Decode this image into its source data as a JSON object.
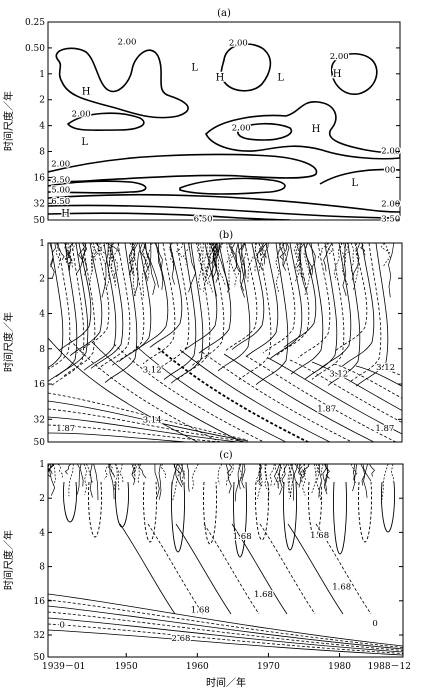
{
  "chart_data": [
    {
      "type": "contour",
      "panel_label": "(a)",
      "ylabel": "时间尺度／年",
      "y_scale": "log2",
      "y_ticks": [
        "0.25",
        "0.50",
        "1",
        "2",
        "4",
        "8",
        "16",
        "32",
        "50"
      ],
      "y_values": [
        0.25,
        0.5,
        1,
        2,
        4,
        8,
        16,
        32,
        50
      ],
      "x_range": [
        1939.0,
        1988.92
      ],
      "contour_labels": [
        {
          "text": "2.00",
          "x": 1950.2,
          "y": 0.42
        },
        {
          "text": "2.00",
          "x": 1966.0,
          "y": 0.43
        },
        {
          "text": "2.00",
          "x": 1980.3,
          "y": 0.62
        },
        {
          "text": "L",
          "x": 1959.8,
          "y": 0.85
        },
        {
          "text": "H",
          "x": 1963.4,
          "y": 1.1
        },
        {
          "text": "L",
          "x": 1972.0,
          "y": 1.1
        },
        {
          "text": "H",
          "x": 1980.0,
          "y": 1.0
        },
        {
          "text": "H",
          "x": 1944.4,
          "y": 1.6
        },
        {
          "text": "2.00",
          "x": 1943.7,
          "y": 2.9
        },
        {
          "text": "L",
          "x": 1944.2,
          "y": 6.2
        },
        {
          "text": "2.00",
          "x": 1966.4,
          "y": 4.2
        },
        {
          "text": "H",
          "x": 1977.0,
          "y": 4.4
        },
        {
          "text": "2.00",
          "x": 1987.6,
          "y": 7.8
        },
        {
          "text": "2.00",
          "x": 1940.8,
          "y": 11.0
        },
        {
          "text": "00",
          "x": 1987.5,
          "y": 13.0
        },
        {
          "text": "3.50",
          "x": 1940.8,
          "y": 17.0
        },
        {
          "text": "L",
          "x": 1982.5,
          "y": 18.5
        },
        {
          "text": "5.00",
          "x": 1940.8,
          "y": 22.0
        },
        {
          "text": "6.50",
          "x": 1940.8,
          "y": 30.0
        },
        {
          "text": "H",
          "x": 1941.5,
          "y": 42.0
        },
        {
          "text": "2.00",
          "x": 1987.6,
          "y": 32.0
        },
        {
          "text": "6.50",
          "x": 1961.0,
          "y": 48.0
        },
        {
          "text": "3.50",
          "x": 1987.6,
          "y": 48.0
        }
      ]
    },
    {
      "type": "contour",
      "panel_label": "(b)",
      "ylabel": "时间尺度／年",
      "y_scale": "log2",
      "y_ticks": [
        "1",
        "2",
        "4",
        "8",
        "16",
        "32",
        "50"
      ],
      "y_values": [
        1,
        2,
        4,
        8,
        16,
        32,
        50
      ],
      "x_range": [
        1939.0,
        1988.92
      ],
      "contour_labels": [
        {
          "text": "3.12",
          "x": 1953.7,
          "y": 12.0
        },
        {
          "text": "3.14",
          "x": 1953.7,
          "y": 32.0
        },
        {
          "text": "1.87",
          "x": 1941.5,
          "y": 38.0
        },
        {
          "text": "1.87",
          "x": 1978.3,
          "y": 26.0
        },
        {
          "text": "3.12",
          "x": 1980.0,
          "y": 13.0
        },
        {
          "text": "3.12",
          "x": 1986.6,
          "y": 11.5
        },
        {
          "text": "1.87",
          "x": 1986.5,
          "y": 38.0
        }
      ]
    },
    {
      "type": "contour",
      "panel_label": "(c)",
      "ylabel": "时间尺度／年",
      "xlabel": "时间／年",
      "y_scale": "log2",
      "y_ticks": [
        "1",
        "2",
        "4",
        "8",
        "16",
        "32",
        "50"
      ],
      "y_values": [
        1,
        2,
        4,
        8,
        16,
        32,
        50
      ],
      "x_range": [
        1939.0,
        1988.92
      ],
      "x_ticks": [
        "1939－01",
        "1950",
        "1960",
        "1970",
        "1980",
        "1988－12"
      ],
      "x_values": [
        1939.0,
        1950,
        1960,
        1970,
        1980,
        1988.92
      ],
      "contour_labels": [
        {
          "text": "1.68",
          "x": 1966.3,
          "y": 4.3
        },
        {
          "text": "1.68",
          "x": 1977.2,
          "y": 4.2
        },
        {
          "text": "1.68",
          "x": 1980.3,
          "y": 12.0
        },
        {
          "text": "1.68",
          "x": 1969.3,
          "y": 14.0
        },
        {
          "text": "1.68",
          "x": 1960.4,
          "y": 19.0
        },
        {
          "text": "2.68",
          "x": 1957.7,
          "y": 34.0
        },
        {
          "text": "0",
          "x": 1941.0,
          "y": 26.0
        },
        {
          "text": "0",
          "x": 1985.0,
          "y": 25.0
        }
      ]
    }
  ]
}
